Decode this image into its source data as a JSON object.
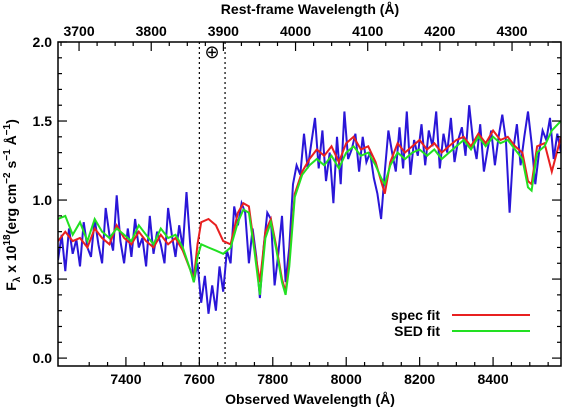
{
  "chart_data": {
    "type": "line",
    "title": "",
    "xlabel": "Observed Wavelength (Å)",
    "xlabel_top": "Rest-frame Wavelength (Å)",
    "ylabel": "F_λ x 10^18(erg cm^-2 s^-1 Å^-1)",
    "ylabel_parts": {
      "f": "F",
      "f_sub": "λ",
      "mult": "x 10",
      "exp": "18",
      "units_a": "(erg cm",
      "exp_a": "−2",
      "units_b": " s",
      "exp_b": "−1",
      "units_c": " Å",
      "exp_c": "−1",
      "close": ")"
    },
    "xlim": [
      7215,
      8585
    ],
    "ylim": [
      -0.05,
      2.0
    ],
    "xticks": [
      7400,
      7600,
      7800,
      8000,
      8200,
      8400
    ],
    "yticks": [
      0.0,
      0.5,
      1.0,
      1.5,
      2.0
    ],
    "ytick_labels": [
      "0.0",
      "0.5",
      "1.0",
      "1.5",
      "2.0"
    ],
    "top_axis_redshift": 0.9655,
    "top_ticks": [
      3700,
      3800,
      3900,
      4000,
      4100,
      4200,
      4300
    ],
    "telluric_band": [
      7600,
      7670
    ],
    "telluric_symbol": "⊕",
    "legend_position": "bottom-right",
    "series": [
      {
        "name": "",
        "color": "#2a16d8",
        "x": [
          7215,
          7225,
          7235,
          7245,
          7255,
          7265,
          7275,
          7285,
          7295,
          7305,
          7315,
          7325,
          7335,
          7345,
          7355,
          7365,
          7375,
          7385,
          7395,
          7405,
          7415,
          7425,
          7435,
          7445,
          7455,
          7465,
          7475,
          7485,
          7495,
          7505,
          7515,
          7525,
          7535,
          7545,
          7555,
          7565,
          7575,
          7585,
          7595,
          7605,
          7615,
          7625,
          7635,
          7645,
          7655,
          7665,
          7675,
          7685,
          7695,
          7705,
          7715,
          7725,
          7735,
          7745,
          7755,
          7765,
          7775,
          7785,
          7795,
          7805,
          7815,
          7825,
          7835,
          7845,
          7855,
          7865,
          7875,
          7885,
          7895,
          7905,
          7915,
          7925,
          7935,
          7945,
          7955,
          7965,
          7975,
          7985,
          7995,
          8005,
          8015,
          8025,
          8035,
          8045,
          8055,
          8065,
          8075,
          8085,
          8095,
          8105,
          8115,
          8125,
          8135,
          8145,
          8155,
          8165,
          8175,
          8185,
          8195,
          8205,
          8215,
          8225,
          8235,
          8245,
          8255,
          8265,
          8275,
          8285,
          8295,
          8305,
          8315,
          8325,
          8335,
          8345,
          8355,
          8365,
          8375,
          8385,
          8395,
          8405,
          8415,
          8425,
          8435,
          8445,
          8455,
          8465,
          8475,
          8485,
          8495,
          8505,
          8515,
          8525,
          8535,
          8545,
          8555,
          8565,
          8575,
          8585
        ],
        "y": [
          0.62,
          0.78,
          0.55,
          0.82,
          0.66,
          0.75,
          0.58,
          0.86,
          0.7,
          0.64,
          0.88,
          0.72,
          0.6,
          0.95,
          0.78,
          0.68,
          1.03,
          0.74,
          0.6,
          0.82,
          0.64,
          0.88,
          0.7,
          0.76,
          0.58,
          0.9,
          0.66,
          0.8,
          0.72,
          0.6,
          0.95,
          0.78,
          0.64,
          0.84,
          0.7,
          1.05,
          0.72,
          0.48,
          0.6,
          0.35,
          0.52,
          0.28,
          0.46,
          0.3,
          0.58,
          0.42,
          0.68,
          0.6,
          0.96,
          0.84,
          0.98,
          0.92,
          0.6,
          0.82,
          0.64,
          0.38,
          0.7,
          0.92,
          0.88,
          0.46,
          0.66,
          0.9,
          0.48,
          0.7,
          1.1,
          1.22,
          1.16,
          1.42,
          1.2,
          1.36,
          1.52,
          1.2,
          1.44,
          1.12,
          1.3,
          0.98,
          1.4,
          1.1,
          1.56,
          1.26,
          1.32,
          1.42,
          1.18,
          1.4,
          1.24,
          1.3,
          1.14,
          1.04,
          0.88,
          1.18,
          1.44,
          1.3,
          1.18,
          1.46,
          1.2,
          1.56,
          1.16,
          1.38,
          1.28,
          1.48,
          1.22,
          1.44,
          1.34,
          1.56,
          1.2,
          1.42,
          1.3,
          1.52,
          1.24,
          1.38,
          1.46,
          1.28,
          1.6,
          1.38,
          1.26,
          1.48,
          1.18,
          1.32,
          1.44,
          1.22,
          1.4,
          1.54,
          1.38,
          0.92,
          1.32,
          1.48,
          1.22,
          1.4,
          1.56,
          1.36,
          1.1,
          1.3,
          1.44,
          1.38,
          1.52,
          1.26,
          1.42,
          1.3
        ]
      },
      {
        "name": "spec fit",
        "color": "#e82020",
        "x": [
          7215,
          7235,
          7255,
          7275,
          7295,
          7315,
          7335,
          7355,
          7375,
          7395,
          7415,
          7435,
          7455,
          7475,
          7495,
          7515,
          7535,
          7555,
          7575,
          7585,
          7595,
          7605,
          7625,
          7645,
          7665,
          7685,
          7705,
          7720,
          7735,
          7750,
          7765,
          7780,
          7795,
          7810,
          7825,
          7835,
          7845,
          7860,
          7880,
          7900,
          7920,
          7940,
          7960,
          7980,
          8000,
          8020,
          8040,
          8060,
          8080,
          8095,
          8105,
          8120,
          8140,
          8160,
          8180,
          8200,
          8220,
          8240,
          8260,
          8280,
          8300,
          8320,
          8340,
          8360,
          8380,
          8400,
          8420,
          8440,
          8460,
          8480,
          8495,
          8505,
          8520,
          8540,
          8560,
          8585
        ],
        "y": [
          0.74,
          0.8,
          0.74,
          0.76,
          0.7,
          0.82,
          0.76,
          0.72,
          0.84,
          0.76,
          0.72,
          0.8,
          0.74,
          0.7,
          0.78,
          0.72,
          0.76,
          0.68,
          0.56,
          0.5,
          0.72,
          0.86,
          0.88,
          0.84,
          0.74,
          0.72,
          0.92,
          0.98,
          0.96,
          0.7,
          0.48,
          0.8,
          0.88,
          0.7,
          0.5,
          0.42,
          0.62,
          1.04,
          1.18,
          1.26,
          1.32,
          1.28,
          1.34,
          1.24,
          1.36,
          1.4,
          1.32,
          1.34,
          1.24,
          1.12,
          1.04,
          1.24,
          1.36,
          1.3,
          1.34,
          1.38,
          1.32,
          1.36,
          1.3,
          1.34,
          1.38,
          1.4,
          1.34,
          1.42,
          1.36,
          1.44,
          1.38,
          1.4,
          1.34,
          1.3,
          1.12,
          1.1,
          1.34,
          1.36,
          1.18,
          1.4
        ]
      },
      {
        "name": "SED fit",
        "color": "#22e022",
        "x": [
          7215,
          7235,
          7255,
          7275,
          7295,
          7315,
          7335,
          7355,
          7375,
          7395,
          7415,
          7435,
          7455,
          7475,
          7495,
          7515,
          7535,
          7555,
          7575,
          7585,
          7595,
          7605,
          7625,
          7645,
          7665,
          7685,
          7705,
          7720,
          7735,
          7750,
          7765,
          7780,
          7795,
          7810,
          7825,
          7835,
          7845,
          7860,
          7880,
          7900,
          7920,
          7940,
          7960,
          7980,
          8000,
          8020,
          8040,
          8060,
          8080,
          8095,
          8105,
          8120,
          8140,
          8160,
          8180,
          8200,
          8220,
          8240,
          8260,
          8280,
          8300,
          8320,
          8340,
          8360,
          8380,
          8400,
          8420,
          8440,
          8460,
          8480,
          8495,
          8505,
          8520,
          8540,
          8560,
          8585
        ],
        "y": [
          0.88,
          0.9,
          0.78,
          0.86,
          0.74,
          0.88,
          0.8,
          0.76,
          0.82,
          0.78,
          0.74,
          0.84,
          0.78,
          0.72,
          0.82,
          0.76,
          0.78,
          0.7,
          0.56,
          0.48,
          0.64,
          0.72,
          0.7,
          0.68,
          0.66,
          0.7,
          0.86,
          0.94,
          0.92,
          0.68,
          0.4,
          0.76,
          0.86,
          0.68,
          0.48,
          0.4,
          0.58,
          1.02,
          1.16,
          1.22,
          1.26,
          1.22,
          1.28,
          1.2,
          1.3,
          1.34,
          1.28,
          1.3,
          1.22,
          1.14,
          1.1,
          1.22,
          1.3,
          1.26,
          1.3,
          1.32,
          1.28,
          1.32,
          1.26,
          1.3,
          1.34,
          1.38,
          1.32,
          1.4,
          1.34,
          1.4,
          1.36,
          1.38,
          1.32,
          1.26,
          1.08,
          1.06,
          1.3,
          1.34,
          1.44,
          1.5
        ]
      }
    ]
  }
}
